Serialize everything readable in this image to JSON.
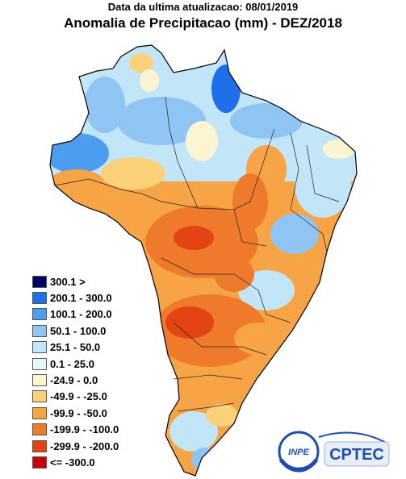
{
  "header": {
    "subtitle": "Data da ultima atualizacao: 08/01/2019",
    "title": "Anomalia de Precipitacao (mm) - DEZ/2018"
  },
  "legend": [
    {
      "label": "300.1 >",
      "color": "#000066"
    },
    {
      "label": "200.1 - 300.0",
      "color": "#1e6fe8"
    },
    {
      "label": "100.1 - 200.0",
      "color": "#4c9cef"
    },
    {
      "label": "50.1 - 100.0",
      "color": "#8fc4f3"
    },
    {
      "label": "25.1 - 50.0",
      "color": "#c2e6f8"
    },
    {
      "label": "0.1 - 25.0",
      "color": "#e6f6fb"
    },
    {
      "label": "-24.9 - 0.0",
      "color": "#fdf5d2"
    },
    {
      "label": "-49.9 - -25.0",
      "color": "#fbd27a"
    },
    {
      "label": "-99.9 - -50.0",
      "color": "#f7a447"
    },
    {
      "label": "-199.9 - -100.0",
      "color": "#ef7a2c"
    },
    {
      "label": "-299.9 - -200.0",
      "color": "#e44414"
    },
    {
      "label": "<= -300.0",
      "color": "#c8000a"
    }
  ],
  "logos": {
    "inpe": "INPE",
    "cptec": "CPTEC"
  }
}
